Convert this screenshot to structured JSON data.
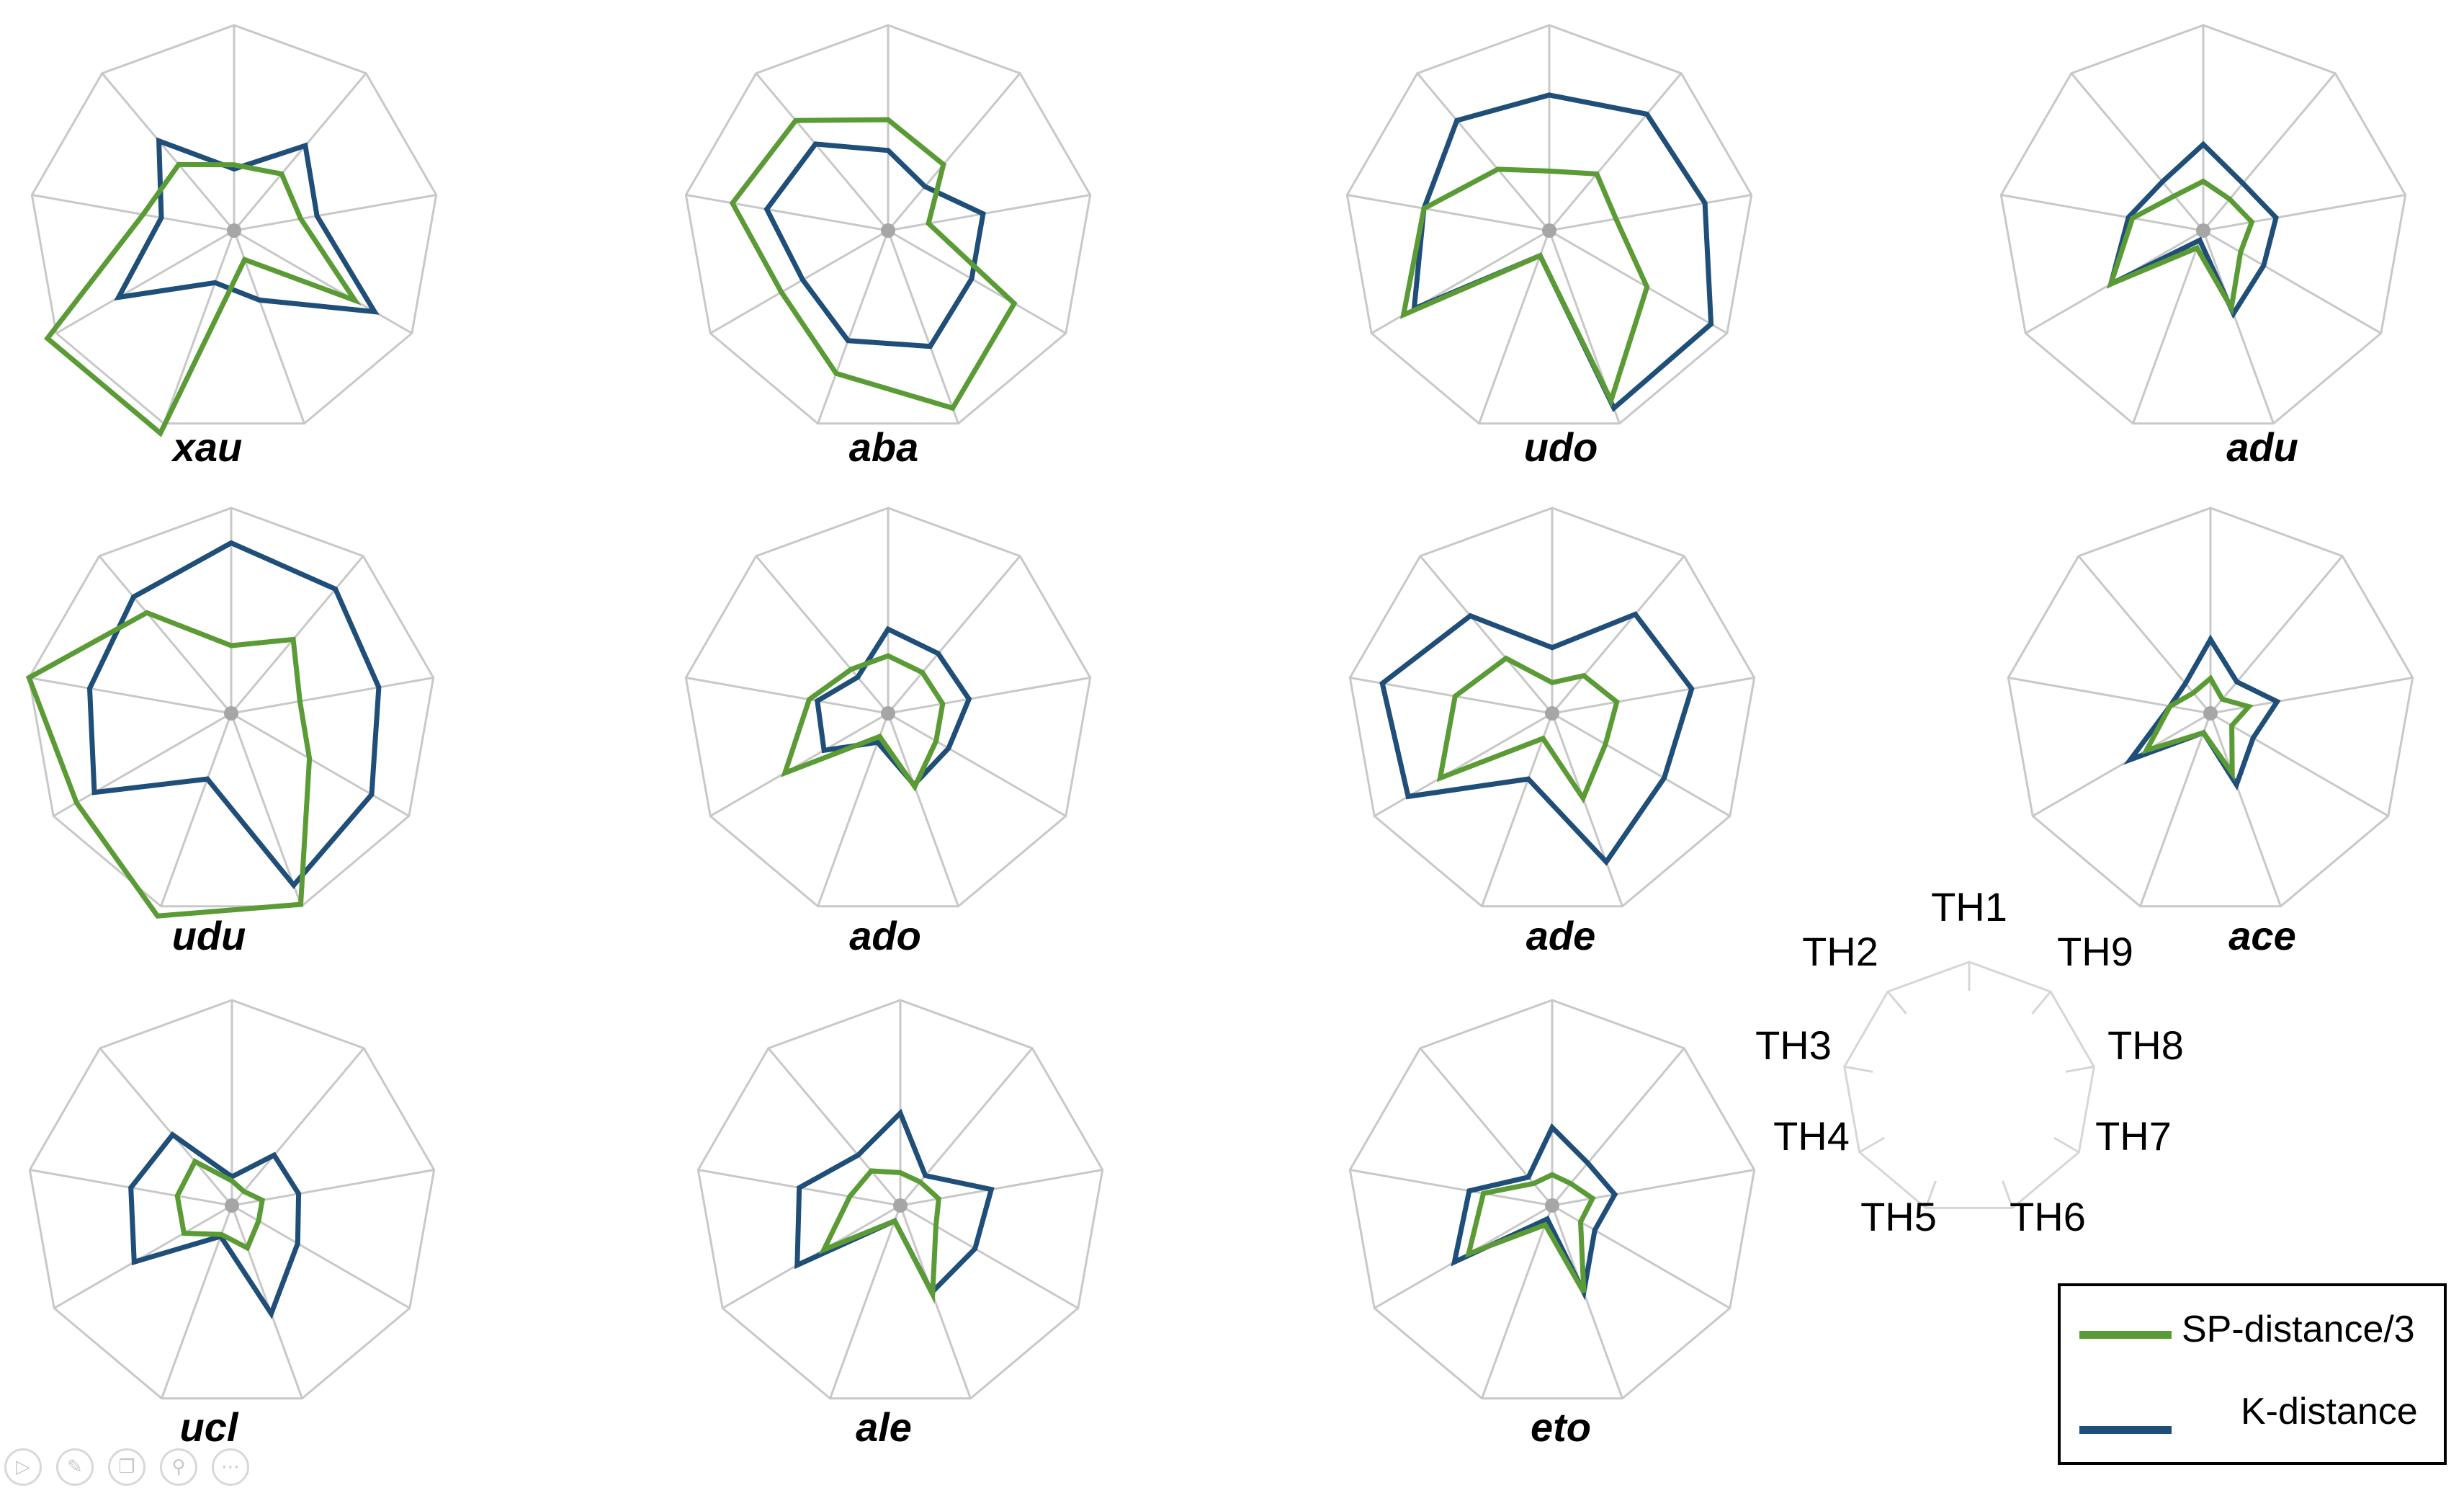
{
  "colors": {
    "sp_series": "#5b9b35",
    "k_series": "#1f4e79",
    "grid": "#c8c8c8",
    "axis_center": "#a6a6a6"
  },
  "chart_data": [
    {
      "type": "radar",
      "title": "xau",
      "categories": [
        "TH1",
        "TH2",
        "TH3",
        "TH4",
        "TH5",
        "TH6",
        "TH7",
        "TH8",
        "TH9"
      ],
      "grid": true,
      "series": [
        {
          "name": "SP-distance/3",
          "values": [
            0.32,
            0.42,
            0.45,
            1.05,
            1.05,
            0.15,
            0.68,
            0.33,
            0.36
          ]
        },
        {
          "name": "K-distance",
          "values": [
            0.3,
            0.57,
            0.36,
            0.65,
            0.27,
            0.36,
            0.79,
            0.41,
            0.54
          ]
        }
      ]
    },
    {
      "type": "radar",
      "title": "aba",
      "categories": [
        "TH1",
        "TH2",
        "TH3",
        "TH4",
        "TH5",
        "TH6",
        "TH7",
        "TH8",
        "TH9"
      ],
      "grid": true,
      "series": [
        {
          "name": "SP-distance/3",
          "values": [
            0.54,
            0.7,
            0.77,
            0.6,
            0.74,
            0.92,
            0.71,
            0.2,
            0.42
          ]
        },
        {
          "name": "K-distance",
          "values": [
            0.39,
            0.55,
            0.6,
            0.48,
            0.57,
            0.6,
            0.47,
            0.47,
            0.28
          ]
        }
      ]
    },
    {
      "type": "radar",
      "title": "udo",
      "categories": [
        "TH1",
        "TH2",
        "TH3",
        "TH4",
        "TH5",
        "TH6",
        "TH7",
        "TH8",
        "TH9"
      ],
      "grid": true,
      "series": [
        {
          "name": "SP-distance/3",
          "values": [
            0.29,
            0.39,
            0.62,
            0.82,
            0.13,
            0.88,
            0.55,
            0.33,
            0.36
          ]
        },
        {
          "name": "K-distance",
          "values": [
            0.66,
            0.7,
            0.62,
            0.76,
            0.13,
            0.92,
            0.91,
            0.77,
            0.74
          ]
        }
      ]
    },
    {
      "type": "radar",
      "title": "adu",
      "categories": [
        "TH1",
        "TH2",
        "TH3",
        "TH4",
        "TH5",
        "TH6",
        "TH7",
        "TH8",
        "TH9"
      ],
      "grid": true,
      "series": [
        {
          "name": "SP-distance/3",
          "values": [
            0.24,
            0.22,
            0.35,
            0.52,
            0.09,
            0.4,
            0.21,
            0.24,
            0.2
          ]
        },
        {
          "name": "K-distance",
          "values": [
            0.42,
            0.31,
            0.37,
            0.52,
            0.05,
            0.43,
            0.34,
            0.36,
            0.3
          ]
        }
      ]
    },
    {
      "type": "radar",
      "title": "udu",
      "categories": [
        "TH1",
        "TH2",
        "TH3",
        "TH4",
        "TH5",
        "TH6",
        "TH7",
        "TH8",
        "TH9"
      ],
      "grid": true,
      "series": [
        {
          "name": "SP-distance/3",
          "values": [
            0.33,
            0.64,
            1.0,
            0.87,
            1.05,
            0.99,
            0.44,
            0.34,
            0.47
          ]
        },
        {
          "name": "K-distance",
          "values": [
            0.83,
            0.74,
            0.7,
            0.77,
            0.34,
            0.89,
            0.79,
            0.73,
            0.79
          ]
        }
      ]
    },
    {
      "type": "radar",
      "title": "ado",
      "categories": [
        "TH1",
        "TH2",
        "TH3",
        "TH4",
        "TH5",
        "TH6",
        "TH7",
        "TH8",
        "TH9"
      ],
      "grid": true,
      "series": [
        {
          "name": "SP-distance/3",
          "values": [
            0.28,
            0.28,
            0.39,
            0.58,
            0.12,
            0.38,
            0.27,
            0.27,
            0.26
          ]
        },
        {
          "name": "K-distance",
          "values": [
            0.41,
            0.23,
            0.35,
            0.36,
            0.15,
            0.37,
            0.34,
            0.4,
            0.38
          ]
        }
      ]
    },
    {
      "type": "radar",
      "title": "ade",
      "categories": [
        "TH1",
        "TH2",
        "TH3",
        "TH4",
        "TH5",
        "TH6",
        "TH7",
        "TH8",
        "TH9"
      ],
      "grid": true,
      "series": [
        {
          "name": "SP-distance/3",
          "values": [
            0.15,
            0.35,
            0.48,
            0.63,
            0.13,
            0.44,
            0.3,
            0.32,
            0.24
          ]
        },
        {
          "name": "K-distance",
          "values": [
            0.32,
            0.62,
            0.84,
            0.81,
            0.34,
            0.77,
            0.63,
            0.69,
            0.63
          ]
        }
      ]
    },
    {
      "type": "radar",
      "title": "ace",
      "categories": [
        "TH1",
        "TH2",
        "TH3",
        "TH4",
        "TH5",
        "TH6",
        "TH7",
        "TH8",
        "TH9"
      ],
      "grid": true,
      "series": [
        {
          "name": "SP-distance/3",
          "values": [
            0.17,
            0.13,
            0.2,
            0.36,
            0.1,
            0.31,
            0.12,
            0.19,
            0.09
          ]
        },
        {
          "name": "K-distance",
          "values": [
            0.36,
            0.19,
            0.2,
            0.45,
            0.1,
            0.37,
            0.24,
            0.33,
            0.2
          ]
        }
      ]
    },
    {
      "type": "radar",
      "title": "ucl",
      "categories": [
        "TH1",
        "TH2",
        "TH3",
        "TH4",
        "TH5",
        "TH6",
        "TH7",
        "TH8",
        "TH9"
      ],
      "grid": true,
      "series": [
        {
          "name": "SP-distance/3",
          "values": [
            0.12,
            0.28,
            0.27,
            0.27,
            0.15,
            0.22,
            0.15,
            0.15,
            0.09
          ]
        },
        {
          "name": "K-distance",
          "values": [
            0.14,
            0.45,
            0.5,
            0.55,
            0.16,
            0.56,
            0.37,
            0.33,
            0.32
          ]
        }
      ]
    },
    {
      "type": "radar",
      "title": "ale",
      "categories": [
        "TH1",
        "TH2",
        "TH3",
        "TH4",
        "TH5",
        "TH6",
        "TH7",
        "TH8",
        "TH9"
      ],
      "grid": true,
      "series": [
        {
          "name": "SP-distance/3",
          "values": [
            0.16,
            0.22,
            0.25,
            0.43,
            0.08,
            0.46,
            0.2,
            0.19,
            0.15
          ]
        },
        {
          "name": "K-distance",
          "values": [
            0.45,
            0.32,
            0.5,
            0.58,
            0.08,
            0.45,
            0.42,
            0.45,
            0.19
          ]
        }
      ]
    },
    {
      "type": "radar",
      "title": "eto",
      "categories": [
        "TH1",
        "TH2",
        "TH3",
        "TH4",
        "TH5",
        "TH6",
        "TH7",
        "TH8",
        "TH9"
      ],
      "grid": true,
      "series": [
        {
          "name": "SP-distance/3",
          "values": [
            0.15,
            0.14,
            0.34,
            0.47,
            0.1,
            0.45,
            0.16,
            0.2,
            0.14
          ]
        },
        {
          "name": "K-distance",
          "values": [
            0.38,
            0.18,
            0.41,
            0.55,
            0.07,
            0.45,
            0.24,
            0.31,
            0.27
          ]
        }
      ]
    }
  ],
  "axis_key": {
    "labels": [
      "TH1",
      "TH2",
      "TH3",
      "TH4",
      "TH5",
      "TH6",
      "TH7",
      "TH8",
      "TH9"
    ]
  },
  "legend": {
    "sp_label": "SP-distance/3",
    "k_label": "K-distance"
  }
}
